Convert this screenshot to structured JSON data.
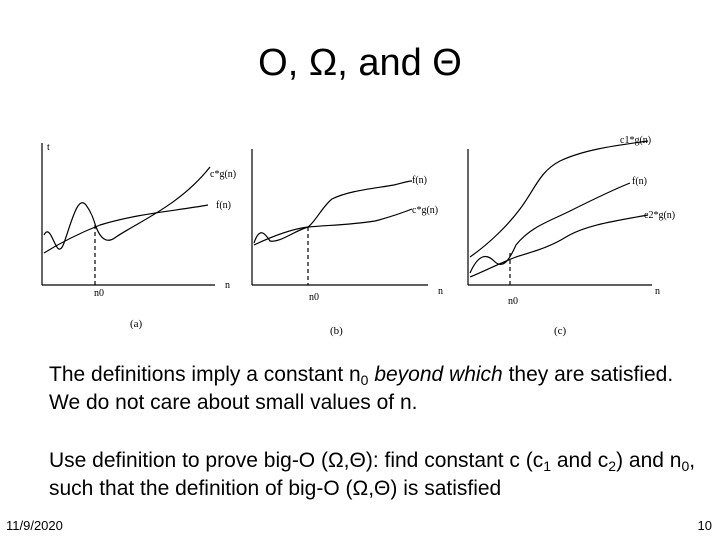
{
  "slide": {
    "title": "O, Ω, and Θ",
    "paragraph1": {
      "a": "The definitions imply a constant n",
      "sub": "0",
      "b": " ",
      "emph": "beyond which",
      "c": " they are satisfied. We do not care about small values of n."
    },
    "paragraph2": {
      "a": "Use definition to prove big-O (Ω,Θ): find constant c (c",
      "sub1": "1",
      "b": " and c",
      "sub2": "2",
      "c": ") and n",
      "sub3": "0",
      "d": ", such that the definition of big-O (Ω,Θ) is satisfied"
    },
    "footer_date": "11/9/2020",
    "page_number": "10"
  },
  "figure": {
    "panel_a": {
      "axis_y": "t",
      "axis_x": "n",
      "threshold": "n0",
      "upper_label": "c*g(n)",
      "lower_label": "f(n)",
      "caption": "(a)"
    },
    "panel_b": {
      "axis_x": "n",
      "threshold": "n0",
      "upper_label": "f(n)",
      "lower_label": "c*g(n)",
      "caption": "(b)"
    },
    "panel_c": {
      "axis_x": "n",
      "threshold": "n0",
      "upper_label": "c1*g(n)",
      "middle_label": "f(n)",
      "lower_label": "c2*g(n)",
      "caption": "(c)"
    }
  }
}
